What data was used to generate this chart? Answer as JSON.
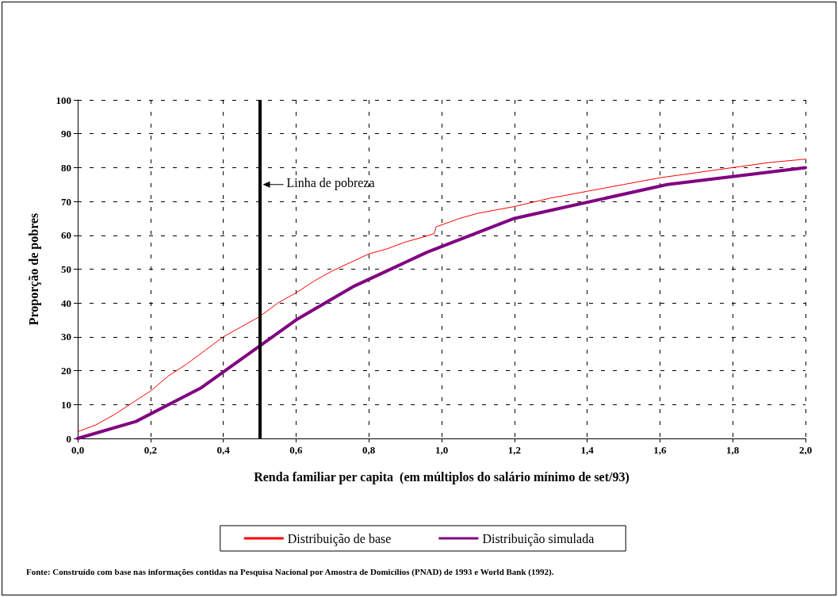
{
  "chart_data": {
    "type": "line",
    "xlabel": "Renda familiar per capita  (em múltiplos do salário mínimo de set/93)",
    "ylabel": "Proporção de pobres",
    "xlim": [
      0,
      2
    ],
    "ylim": [
      0,
      100
    ],
    "xticks": [
      {
        "value": 0,
        "label": "0,0"
      },
      {
        "value": 0.2,
        "label": "0,2"
      },
      {
        "value": 0.4,
        "label": "0,4"
      },
      {
        "value": 0.6,
        "label": "0,6"
      },
      {
        "value": 0.8,
        "label": "0,8"
      },
      {
        "value": 1,
        "label": "1,0"
      },
      {
        "value": 1.2,
        "label": "1,2"
      },
      {
        "value": 1.4,
        "label": "1,4"
      },
      {
        "value": 1.6,
        "label": "1,6"
      },
      {
        "value": 1.8,
        "label": "1,8"
      },
      {
        "value": 2,
        "label": "2,0"
      }
    ],
    "yticks": [
      0,
      10,
      20,
      30,
      40,
      50,
      60,
      70,
      80,
      90,
      100
    ],
    "grid": true,
    "legend": "bottom",
    "marker": "none",
    "line_style": "solid",
    "series": [
      {
        "name": "Distribuição de base",
        "color": "#ff0000",
        "x": [
          0,
          0.05,
          0.1,
          0.15,
          0.2,
          0.25,
          0.3,
          0.35,
          0.4,
          0.45,
          0.5,
          0.55,
          0.6,
          0.65,
          0.7,
          0.75,
          0.8,
          0.85,
          0.9,
          0.95,
          0.98,
          0.985,
          1.05,
          1.1,
          1.15,
          1.2,
          1.3,
          1.4,
          1.5,
          1.6,
          1.7,
          1.8,
          1.9,
          2.0
        ],
        "values": [
          2,
          4,
          7,
          10.5,
          14,
          18.5,
          22,
          26,
          30,
          33,
          36,
          40,
          43,
          46.5,
          49.5,
          52,
          54.5,
          56,
          58,
          59.5,
          60.5,
          62.5,
          65,
          66.5,
          67.5,
          68.5,
          71,
          73,
          75,
          77,
          78.5,
          80,
          81.5,
          82.5
        ]
      },
      {
        "name": "Distribuição simulada",
        "color": "#800080",
        "x": [
          0,
          0.16,
          0.34,
          0.6,
          0.76,
          0.96,
          1.2,
          1.62,
          2.0
        ],
        "values": [
          0,
          5,
          15,
          35,
          45,
          55,
          65,
          75,
          80
        ]
      }
    ],
    "ref_lines": [
      {
        "axis": "x",
        "value": 0.5,
        "label": "Linha de pobreza",
        "color": "#000000",
        "line_style": "solid"
      }
    ],
    "annotations": [
      "Fonte: Construído com base nas informações contidas na Pesquisa Nacional por Amostra de Domicílios (PNAD) de 1993 e World Bank (1992)."
    ]
  }
}
